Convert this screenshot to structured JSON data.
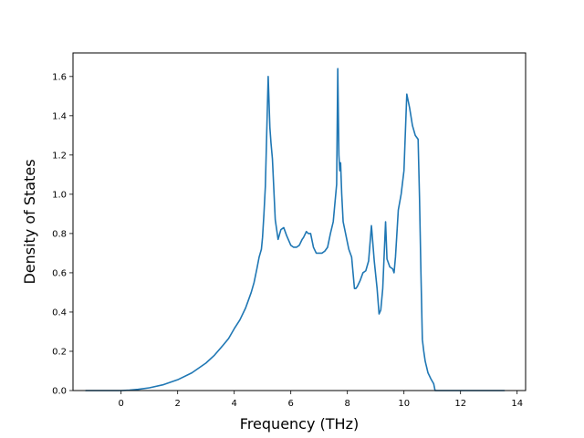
{
  "chart_data": {
    "type": "line",
    "title": "",
    "xlabel": "Frequency (THz)",
    "ylabel": "Density of States",
    "xlim": [
      -1.7,
      14.3
    ],
    "ylim": [
      0.0,
      1.72
    ],
    "xticks": [
      0,
      2,
      4,
      6,
      8,
      10,
      12,
      14
    ],
    "yticks": [
      0.0,
      0.2,
      0.4,
      0.6,
      0.8,
      1.0,
      1.2,
      1.4,
      1.6
    ],
    "xtick_labels": [
      "0",
      "2",
      "4",
      "6",
      "8",
      "10",
      "12",
      "14"
    ],
    "ytick_labels": [
      "0.0",
      "0.2",
      "0.4",
      "0.6",
      "0.8",
      "1.0",
      "1.2",
      "1.4",
      "1.6"
    ],
    "grid": false,
    "legend": "none",
    "line_color": "#1f77b4",
    "series": [
      {
        "x": [
          -1.25,
          -0.5,
          0.0,
          0.3,
          0.6,
          1.0,
          1.5,
          2.0,
          2.5,
          3.0,
          3.3,
          3.6,
          3.8,
          4.0,
          4.2,
          4.4,
          4.5,
          4.6,
          4.7,
          4.8,
          4.88,
          4.92,
          4.96,
          5.0,
          5.05,
          5.1,
          5.2,
          5.26,
          5.3,
          5.35,
          5.45,
          5.55,
          5.65,
          5.75,
          5.85,
          6.0,
          6.1,
          6.2,
          6.3,
          6.4,
          6.45,
          6.55,
          6.62,
          6.7,
          6.8,
          6.9,
          7.0,
          7.1,
          7.2,
          7.3,
          7.4,
          7.5,
          7.55,
          7.62,
          7.66,
          7.7,
          7.73,
          7.76,
          7.8,
          7.85,
          7.95,
          8.05,
          8.15,
          8.2,
          8.25,
          8.3,
          8.35,
          8.45,
          8.55,
          8.65,
          8.75,
          8.85,
          8.95,
          9.05,
          9.12,
          9.18,
          9.25,
          9.35,
          9.4,
          9.5,
          9.6,
          9.65,
          9.7,
          9.75,
          9.8,
          9.9,
          10.0,
          10.1,
          10.2,
          10.3,
          10.4,
          10.5,
          10.55,
          10.6,
          10.65,
          10.7,
          10.75,
          10.8,
          10.85,
          10.95,
          11.05,
          11.1,
          11.3,
          11.5,
          11.7,
          11.9,
          12.1,
          12.2,
          12.3,
          12.4,
          13.0,
          13.55
        ],
        "y": [
          0.0,
          0.0,
          0.0,
          0.002,
          0.006,
          0.014,
          0.03,
          0.055,
          0.09,
          0.14,
          0.18,
          0.23,
          0.265,
          0.315,
          0.36,
          0.42,
          0.46,
          0.5,
          0.55,
          0.62,
          0.68,
          0.7,
          0.72,
          0.78,
          0.9,
          1.04,
          1.6,
          1.34,
          1.26,
          1.18,
          0.87,
          0.77,
          0.82,
          0.83,
          0.79,
          0.74,
          0.73,
          0.73,
          0.74,
          0.77,
          0.78,
          0.81,
          0.8,
          0.8,
          0.73,
          0.7,
          0.7,
          0.7,
          0.71,
          0.73,
          0.8,
          0.86,
          0.94,
          1.05,
          1.64,
          1.2,
          1.12,
          1.16,
          1.0,
          0.86,
          0.79,
          0.72,
          0.68,
          0.6,
          0.52,
          0.52,
          0.53,
          0.56,
          0.6,
          0.61,
          0.66,
          0.84,
          0.66,
          0.52,
          0.39,
          0.41,
          0.52,
          0.86,
          0.67,
          0.63,
          0.62,
          0.6,
          0.68,
          0.8,
          0.92,
          1.0,
          1.12,
          1.51,
          1.44,
          1.35,
          1.3,
          1.28,
          0.98,
          0.6,
          0.26,
          0.2,
          0.15,
          0.12,
          0.09,
          0.06,
          0.035,
          0.0,
          0.0,
          0.0,
          0.0,
          0.0,
          0.0,
          0.0,
          0.0,
          0.0,
          0.0,
          0.0
        ]
      }
    ]
  }
}
